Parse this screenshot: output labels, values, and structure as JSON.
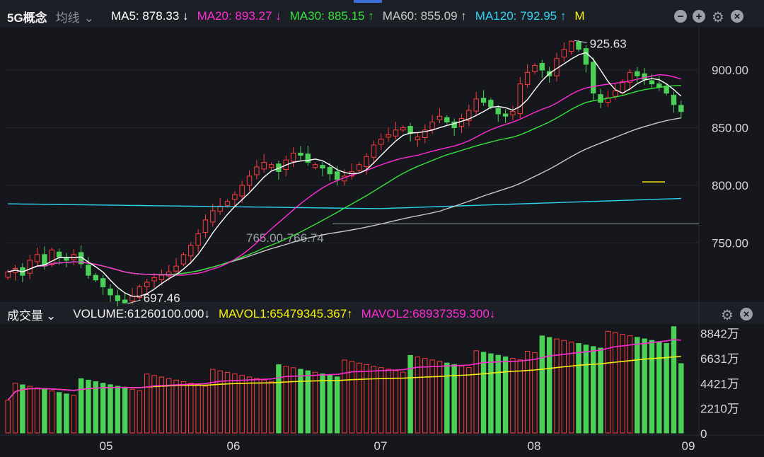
{
  "header": {
    "title": "5G概念",
    "mode": "均线",
    "mode_arrow": "⌄",
    "ma": [
      {
        "label": "MA5: 878.33 ↓",
        "color": "#ffffff"
      },
      {
        "label": "MA20: 893.27 ↓",
        "color": "#ff2cd5"
      },
      {
        "label": "MA30: 885.15 ↑",
        "color": "#36e23c"
      },
      {
        "label": "MA60: 855.09 ↑",
        "color": "#c9c9c9"
      },
      {
        "label": "MA120: 792.95 ↑",
        "color": "#2fd4f0"
      }
    ],
    "m_label": "M"
  },
  "volume_header": {
    "title": "成交量",
    "title_arrow": "⌄",
    "volume": "VOLUME:61260100.000↓",
    "mavol1": "MAVOL1:65479345.367↑",
    "mavol2": "MAVOL2:68937359.300↓"
  },
  "colors": {
    "up": "#ff3b3b",
    "down": "#4bd158",
    "bg": "#15171c",
    "ma5": "#ffffff",
    "ma20": "#ff2cd5",
    "ma30": "#36e23c",
    "ma60": "#c9c9c9",
    "ma120": "#2fd4f0",
    "mavol1": "#f5f10c",
    "mavol2": "#ff2cd5"
  },
  "icons": [
    "minus-circle-icon",
    "plus-circle-icon",
    "gear-icon",
    "close-circle-icon"
  ],
  "chart_data": {
    "type": "candlestick",
    "price_axis": {
      "ticks": [
        "900.00",
        "850.00",
        "800.00",
        "750.00"
      ],
      "values": [
        900,
        850,
        800,
        750
      ],
      "range": [
        700,
        935
      ]
    },
    "volume_axis": {
      "ticks": [
        "8842万",
        "6631万",
        "4421万",
        "2210万",
        "0"
      ],
      "values": [
        8842,
        6631,
        4421,
        2210,
        0
      ],
      "range": [
        0,
        9500
      ]
    },
    "x_labels": [
      "05",
      "06",
      "07",
      "08",
      "09"
    ],
    "annotations": {
      "high": "925.63",
      "low": "697.46",
      "band": "765.00-766.74",
      "band_value": 766.74
    },
    "close": [
      725,
      728,
      722,
      735,
      740,
      730,
      744,
      738,
      735,
      740,
      732,
      722,
      718,
      712,
      705,
      700,
      698,
      704,
      712,
      716,
      720,
      722,
      725,
      730,
      740,
      748,
      758,
      770,
      778,
      782,
      786,
      792,
      800,
      808,
      816,
      820,
      818,
      812,
      822,
      828,
      826,
      820,
      818,
      815,
      810,
      805,
      808,
      812,
      818,
      825,
      835,
      840,
      844,
      848,
      850,
      845,
      842,
      848,
      855,
      860,
      855,
      850,
      858,
      865,
      875,
      872,
      868,
      862,
      860,
      864,
      888,
      898,
      904,
      900,
      895,
      910,
      918,
      925,
      918,
      905,
      880,
      872,
      876,
      882,
      890,
      898,
      895,
      892,
      888,
      885,
      880,
      870,
      864
    ],
    "ma5_end": 878.33,
    "ma20_end": 893.27,
    "ma30_end": 885.15,
    "ma60_end": 855.09,
    "ma120_end": 792.95,
    "mavol1_end": 65479345.367,
    "mavol2_end": 68937359.3,
    "volume_last": 61260100
  }
}
